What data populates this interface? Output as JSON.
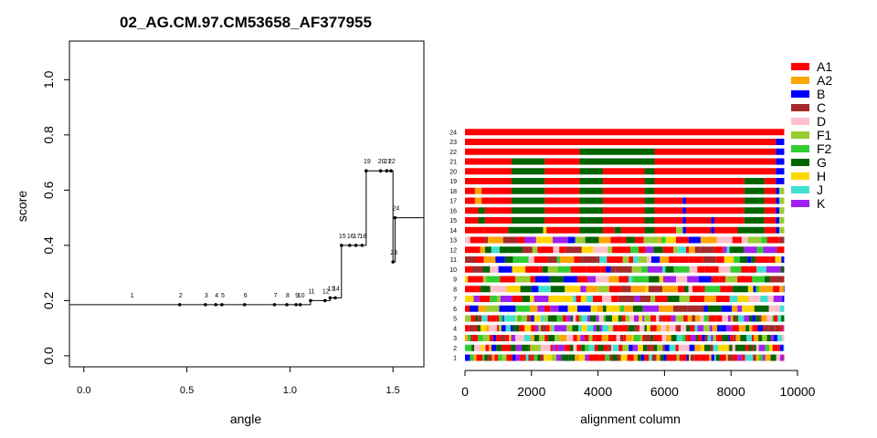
{
  "chart_data": [
    {
      "type": "line",
      "title": "02_AG.CM.97.CM53658_AF377955",
      "xlabel": "angle",
      "ylabel": "score",
      "xlim": [
        -0.07,
        1.65
      ],
      "ylim": [
        -0.04,
        1.14
      ],
      "xticks": [
        0.0,
        0.5,
        1.0,
        1.5
      ],
      "xtick_labels": [
        "0.0",
        "0.5",
        "1.0",
        "1.5"
      ],
      "yticks": [
        0.0,
        0.2,
        0.4,
        0.6,
        0.8,
        1.0
      ],
      "ytick_labels": [
        "0.0",
        "0.2",
        "0.4",
        "0.6",
        "0.8",
        "1.0"
      ],
      "grid": false,
      "step_points": [
        {
          "label": "1",
          "x": 0.23,
          "y": 0.185
        },
        {
          "label": "2",
          "x": 0.465,
          "y": 0.185
        },
        {
          "label": "3",
          "x": 0.59,
          "y": 0.185
        },
        {
          "label": "4",
          "x": 0.64,
          "y": 0.185
        },
        {
          "label": "5",
          "x": 0.67,
          "y": 0.185
        },
        {
          "label": "6",
          "x": 0.78,
          "y": 0.185
        },
        {
          "label": "7",
          "x": 0.925,
          "y": 0.185
        },
        {
          "label": "8",
          "x": 0.985,
          "y": 0.185
        },
        {
          "label": "9",
          "x": 1.03,
          "y": 0.185
        },
        {
          "label": "10",
          "x": 1.05,
          "y": 0.185
        },
        {
          "label": "11",
          "x": 1.1,
          "y": 0.2
        },
        {
          "label": "12",
          "x": 1.17,
          "y": 0.2
        },
        {
          "label": "13",
          "x": 1.195,
          "y": 0.21
        },
        {
          "label": "14",
          "x": 1.22,
          "y": 0.21
        },
        {
          "label": "15",
          "x": 1.25,
          "y": 0.4
        },
        {
          "label": "16",
          "x": 1.29,
          "y": 0.4
        },
        {
          "label": "17",
          "x": 1.32,
          "y": 0.4
        },
        {
          "label": "18",
          "x": 1.35,
          "y": 0.4
        },
        {
          "label": "19",
          "x": 1.37,
          "y": 0.67
        },
        {
          "label": "20",
          "x": 1.44,
          "y": 0.67
        },
        {
          "label": "21",
          "x": 1.47,
          "y": 0.67
        },
        {
          "label": "22",
          "x": 1.49,
          "y": 0.67
        },
        {
          "label": "23",
          "x": 1.5,
          "y": 0.34
        },
        {
          "label": "24",
          "x": 1.51,
          "y": 0.5
        }
      ],
      "line_end": {
        "x": 1.65,
        "y": 0.5
      }
    },
    {
      "type": "heatmap",
      "xlabel": "alignment column",
      "xlim": [
        0,
        10000
      ],
      "xticks": [
        0,
        2000,
        4000,
        6000,
        8000,
        10000
      ],
      "xtick_labels": [
        "0",
        "2000",
        "4000",
        "6000",
        "8000",
        "10000"
      ],
      "alignment_length": 9600,
      "row_labels": [
        "1",
        "2",
        "3",
        "4",
        "5",
        "6",
        "7",
        "8",
        "9",
        "10",
        "11",
        "12",
        "13",
        "14",
        "15",
        "16",
        "17",
        "18",
        "19",
        "20",
        "21",
        "22",
        "23",
        "24"
      ],
      "legend": [
        {
          "label": "A1",
          "color": "#ff0000"
        },
        {
          "label": "A2",
          "color": "#ffa500"
        },
        {
          "label": "B",
          "color": "#0000ff"
        },
        {
          "label": "C",
          "color": "#a52a2a"
        },
        {
          "label": "D",
          "color": "#ffc0cb"
        },
        {
          "label": "F1",
          "color": "#9acd32"
        },
        {
          "label": "F2",
          "color": "#32cd32"
        },
        {
          "label": "G",
          "color": "#006400"
        },
        {
          "label": "H",
          "color": "#ffd700"
        },
        {
          "label": "J",
          "color": "#40e0d0"
        },
        {
          "label": "K",
          "color": "#a020f0"
        }
      ],
      "legend_placement": "top-right",
      "rows": [
        {
          "row": "24",
          "segments": [
            [
              0,
              9600,
              "A1"
            ]
          ]
        },
        {
          "row": "23",
          "segments": [
            [
              0,
              9350,
              "A1"
            ],
            [
              9350,
              9600,
              "B"
            ]
          ]
        },
        {
          "row": "22",
          "segments": [
            [
              0,
              3450,
              "A1"
            ],
            [
              3450,
              5700,
              "G"
            ],
            [
              5700,
              9350,
              "A1"
            ],
            [
              9350,
              9600,
              "B"
            ]
          ]
        },
        {
          "row": "21",
          "segments": [
            [
              0,
              1400,
              "A1"
            ],
            [
              1400,
              2400,
              "G"
            ],
            [
              2400,
              3450,
              "A1"
            ],
            [
              3450,
              5700,
              "G"
            ],
            [
              5700,
              9350,
              "A1"
            ],
            [
              9350,
              9600,
              "B"
            ]
          ]
        },
        {
          "row": "20",
          "segments": [
            [
              0,
              1400,
              "A1"
            ],
            [
              1400,
              2400,
              "G"
            ],
            [
              2400,
              3450,
              "A1"
            ],
            [
              3450,
              4150,
              "G"
            ],
            [
              4150,
              5400,
              "A1"
            ],
            [
              5400,
              5700,
              "G"
            ],
            [
              5700,
              9350,
              "A1"
            ],
            [
              9350,
              9600,
              "B"
            ]
          ]
        },
        {
          "row": "19",
          "segments": [
            [
              0,
              1400,
              "A1"
            ],
            [
              1400,
              2400,
              "G"
            ],
            [
              2400,
              3450,
              "A1"
            ],
            [
              3450,
              4150,
              "G"
            ],
            [
              4150,
              5400,
              "A1"
            ],
            [
              5400,
              5700,
              "G"
            ],
            [
              5700,
              8400,
              "A1"
            ],
            [
              8400,
              9000,
              "G"
            ],
            [
              9000,
              9350,
              "A1"
            ],
            [
              9350,
              9600,
              "B"
            ]
          ]
        },
        {
          "row": "18",
          "segments": [
            [
              0,
              300,
              "A1"
            ],
            [
              300,
              500,
              "A2"
            ],
            [
              500,
              1400,
              "A1"
            ],
            [
              1400,
              2400,
              "G"
            ],
            [
              2400,
              3450,
              "A1"
            ],
            [
              3450,
              4150,
              "G"
            ],
            [
              4150,
              5400,
              "A1"
            ],
            [
              5400,
              5700,
              "G"
            ],
            [
              5700,
              8400,
              "A1"
            ],
            [
              8400,
              9000,
              "G"
            ],
            [
              9000,
              9350,
              "A1"
            ],
            [
              9350,
              9450,
              "B"
            ],
            [
              9450,
              9600,
              "F1"
            ]
          ]
        },
        {
          "row": "17",
          "segments": [
            [
              0,
              300,
              "A1"
            ],
            [
              300,
              500,
              "A2"
            ],
            [
              500,
              1400,
              "A1"
            ],
            [
              1400,
              2400,
              "G"
            ],
            [
              2400,
              3450,
              "A1"
            ],
            [
              3450,
              4150,
              "G"
            ],
            [
              4150,
              5400,
              "A1"
            ],
            [
              5400,
              5700,
              "G"
            ],
            [
              5700,
              6550,
              "A1"
            ],
            [
              6550,
              6650,
              "B"
            ],
            [
              6650,
              8400,
              "A1"
            ],
            [
              8400,
              9000,
              "G"
            ],
            [
              9000,
              9350,
              "A1"
            ],
            [
              9350,
              9450,
              "B"
            ],
            [
              9450,
              9600,
              "F1"
            ]
          ]
        },
        {
          "row": "16",
          "segments": [
            [
              0,
              400,
              "A1"
            ],
            [
              400,
              600,
              "G"
            ],
            [
              600,
              1400,
              "A1"
            ],
            [
              1400,
              2400,
              "G"
            ],
            [
              2400,
              3450,
              "A1"
            ],
            [
              3450,
              4150,
              "G"
            ],
            [
              4150,
              5400,
              "A1"
            ],
            [
              5400,
              5700,
              "G"
            ],
            [
              5700,
              6550,
              "A1"
            ],
            [
              6550,
              6650,
              "B"
            ],
            [
              6650,
              8400,
              "A1"
            ],
            [
              8400,
              9000,
              "G"
            ],
            [
              9000,
              9350,
              "A1"
            ],
            [
              9350,
              9450,
              "B"
            ],
            [
              9450,
              9600,
              "F1"
            ]
          ]
        },
        {
          "row": "15",
          "segments": [
            [
              0,
              400,
              "A1"
            ],
            [
              400,
              600,
              "G"
            ],
            [
              600,
              1400,
              "A1"
            ],
            [
              1400,
              2400,
              "G"
            ],
            [
              2400,
              3450,
              "A1"
            ],
            [
              3450,
              4150,
              "G"
            ],
            [
              4150,
              5400,
              "A1"
            ],
            [
              5400,
              5700,
              "G"
            ],
            [
              5700,
              6550,
              "A1"
            ],
            [
              6550,
              6650,
              "B"
            ],
            [
              6650,
              7400,
              "A1"
            ],
            [
              7400,
              7500,
              "B"
            ],
            [
              7500,
              8400,
              "A1"
            ],
            [
              8400,
              9000,
              "G"
            ],
            [
              9000,
              9350,
              "A1"
            ],
            [
              9350,
              9450,
              "B"
            ],
            [
              9450,
              9600,
              "F1"
            ]
          ]
        },
        {
          "row": "14",
          "segments": [
            [
              0,
              600,
              "A1"
            ],
            [
              600,
              1300,
              "A1"
            ],
            [
              1300,
              2350,
              "G"
            ],
            [
              2350,
              2450,
              "H"
            ],
            [
              2450,
              3450,
              "A1"
            ],
            [
              3450,
              4150,
              "G"
            ],
            [
              4150,
              4500,
              "A1"
            ],
            [
              4500,
              4700,
              "G"
            ],
            [
              4700,
              5400,
              "A1"
            ],
            [
              5400,
              5700,
              "G"
            ],
            [
              5700,
              6350,
              "A1"
            ],
            [
              6350,
              6550,
              "F1"
            ],
            [
              6550,
              6650,
              "B"
            ],
            [
              6650,
              7400,
              "A1"
            ],
            [
              7400,
              7500,
              "B"
            ],
            [
              7500,
              8200,
              "A1"
            ],
            [
              8200,
              9000,
              "G"
            ],
            [
              9000,
              9350,
              "A1"
            ],
            [
              9350,
              9450,
              "B"
            ],
            [
              9450,
              9600,
              "F1"
            ]
          ]
        }
      ]
    }
  ]
}
